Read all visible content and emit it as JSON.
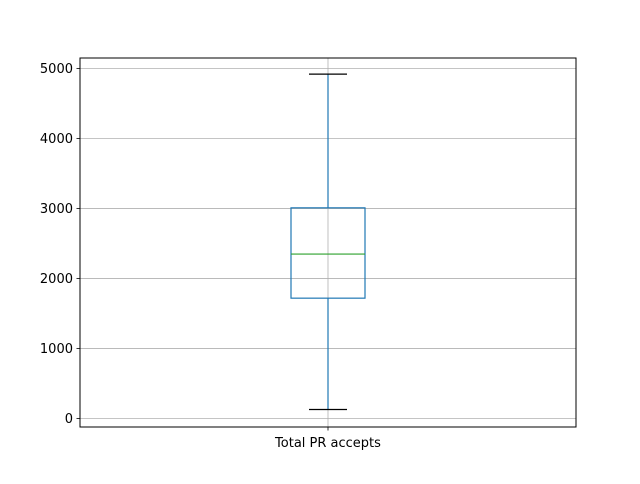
{
  "chart_data": {
    "type": "box",
    "categories": [
      "Total PR accepts"
    ],
    "series": [
      {
        "label": "Total PR accepts",
        "whisker_low": 130,
        "q1": 1720,
        "median": 2350,
        "q3": 3010,
        "whisker_high": 4920,
        "outliers": []
      }
    ],
    "title": "",
    "xlabel": "",
    "ylabel": "",
    "ylim": [
      -120,
      5150
    ],
    "yticks": [
      0,
      1000,
      2000,
      3000,
      4000,
      5000
    ],
    "grid": true,
    "legend": "none",
    "colors": {
      "box": "#1f77b4",
      "whisker": "#1f77b4",
      "cap": "#000000",
      "median": "#2ca02c",
      "grid": "#b0b0b0",
      "axes": "#000000"
    }
  }
}
